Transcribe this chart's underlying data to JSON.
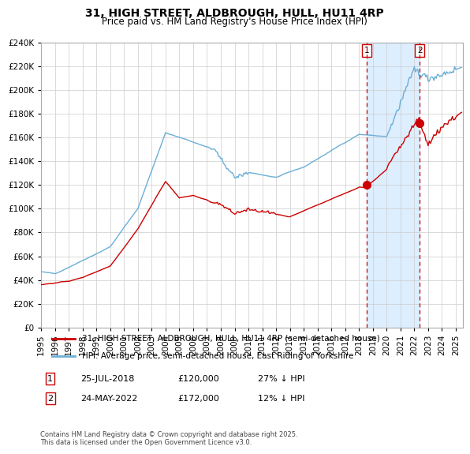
{
  "title": "31, HIGH STREET, ALDBROUGH, HULL, HU11 4RP",
  "subtitle": "Price paid vs. HM Land Registry's House Price Index (HPI)",
  "background_color": "#ffffff",
  "grid_color": "#cccccc",
  "hpi_color": "#6baed6",
  "hpi_fill_color": "#ddeeff",
  "price_color": "#cc0000",
  "ylim": [
    0,
    240000
  ],
  "yticks": [
    0,
    20000,
    40000,
    60000,
    80000,
    100000,
    120000,
    140000,
    160000,
    180000,
    200000,
    220000,
    240000
  ],
  "xlim_start": 1995.0,
  "xlim_end": 2025.5,
  "ann1_x": 2018.55,
  "ann1_y": 120000,
  "ann2_x": 2022.38,
  "ann2_y": 172000,
  "legend_line1": "31, HIGH STREET, ALDBROUGH, HULL, HU11 4RP (semi-detached house)",
  "legend_line2": "HPI: Average price, semi-detached house, East Riding of Yorkshire",
  "table_row1": [
    "1",
    "25-JUL-2018",
    "£120,000",
    "27% ↓ HPI"
  ],
  "table_row2": [
    "2",
    "24-MAY-2022",
    "£172,000",
    "12% ↓ HPI"
  ],
  "footnote": "Contains HM Land Registry data © Crown copyright and database right 2025.\nThis data is licensed under the Open Government Licence v3.0."
}
